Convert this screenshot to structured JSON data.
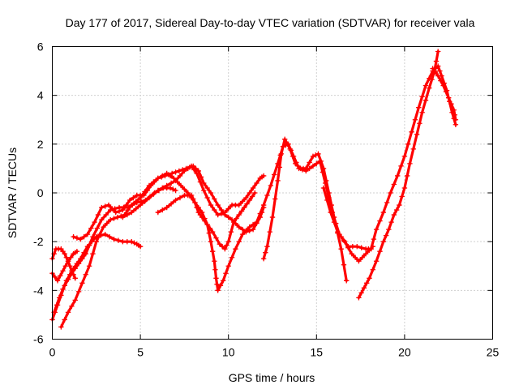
{
  "chart_data": {
    "type": "scatter",
    "title": "Day 177 of 2017, Sidereal Day-to-day VTEC variation (SDTVAR) for receiver vala",
    "xlabel": "GPS time / hours",
    "ylabel": "SDTVAR / TECUs",
    "xlim": [
      0,
      25
    ],
    "ylim": [
      -6,
      6
    ],
    "xticks": [
      0,
      5,
      10,
      15,
      20,
      25
    ],
    "yticks": [
      -6,
      -4,
      -2,
      0,
      2,
      4,
      6
    ],
    "grid": true,
    "marker": "+",
    "color": "#ff0000",
    "series": [
      {
        "name": "track-1",
        "points": [
          [
            0.0,
            -2.7
          ],
          [
            0.2,
            -2.3
          ],
          [
            0.5,
            -2.3
          ],
          [
            0.7,
            -2.5
          ],
          [
            0.9,
            -2.8
          ],
          [
            1.1,
            -3.2
          ],
          [
            1.3,
            -3.5
          ]
        ]
      },
      {
        "name": "track-2",
        "points": [
          [
            0.0,
            -3.3
          ],
          [
            0.3,
            -3.6
          ],
          [
            0.6,
            -3.2
          ],
          [
            0.9,
            -2.8
          ],
          [
            1.2,
            -2.5
          ],
          [
            1.4,
            -2.4
          ]
        ]
      },
      {
        "name": "track-3",
        "points": [
          [
            0.0,
            -5.2
          ],
          [
            0.3,
            -4.6
          ],
          [
            0.7,
            -3.8
          ],
          [
            1.1,
            -3.3
          ],
          [
            1.5,
            -2.9
          ],
          [
            1.9,
            -2.5
          ],
          [
            2.3,
            -1.8
          ],
          [
            2.8,
            -1.1
          ],
          [
            3.3,
            -0.7
          ],
          [
            3.8,
            -0.6
          ],
          [
            4.3,
            -0.6
          ],
          [
            4.8,
            -0.4
          ],
          [
            5.3,
            -0.3
          ],
          [
            5.8,
            0.0
          ],
          [
            6.3,
            0.2
          ],
          [
            6.7,
            0.2
          ],
          [
            7.0,
            0.1
          ]
        ]
      },
      {
        "name": "track-4",
        "points": [
          [
            0.1,
            -4.9
          ],
          [
            0.4,
            -4.3
          ],
          [
            0.8,
            -3.6
          ],
          [
            1.2,
            -3.1
          ],
          [
            1.6,
            -2.7
          ],
          [
            2.0,
            -2.2
          ],
          [
            2.5,
            -1.8
          ],
          [
            3.0,
            -1.7
          ],
          [
            3.5,
            -1.9
          ],
          [
            4.0,
            -2.0
          ],
          [
            4.5,
            -2.0
          ],
          [
            4.8,
            -2.1
          ],
          [
            5.0,
            -2.2
          ]
        ]
      },
      {
        "name": "track-5",
        "points": [
          [
            0.5,
            -5.5
          ],
          [
            0.9,
            -4.9
          ],
          [
            1.3,
            -4.4
          ],
          [
            1.7,
            -3.7
          ],
          [
            2.1,
            -3.0
          ],
          [
            2.5,
            -2.0
          ],
          [
            2.9,
            -1.4
          ],
          [
            3.3,
            -1.1
          ],
          [
            3.7,
            -1.0
          ],
          [
            4.1,
            -0.9
          ],
          [
            4.5,
            -0.5
          ],
          [
            5.0,
            -0.2
          ],
          [
            5.5,
            0.3
          ],
          [
            6.0,
            0.6
          ],
          [
            6.5,
            0.8
          ],
          [
            6.9,
            0.6
          ],
          [
            7.3,
            0.3
          ],
          [
            7.7,
            0.0
          ],
          [
            8.1,
            -0.4
          ],
          [
            8.5,
            -0.8
          ],
          [
            8.8,
            -1.3
          ],
          [
            9.0,
            -2.0
          ],
          [
            9.2,
            -2.8
          ],
          [
            9.3,
            -3.5
          ],
          [
            9.4,
            -4.0
          ],
          [
            9.7,
            -3.6
          ],
          [
            10.0,
            -3.0
          ],
          [
            10.4,
            -2.3
          ],
          [
            10.8,
            -1.7
          ],
          [
            11.2,
            -1.4
          ],
          [
            11.6,
            -1.2
          ],
          [
            12.0,
            -0.5
          ],
          [
            12.4,
            0.3
          ],
          [
            12.8,
            1.2
          ],
          [
            13.1,
            1.9
          ],
          [
            13.4,
            2.0
          ],
          [
            13.7,
            1.5
          ],
          [
            14.0,
            1.0
          ],
          [
            14.4,
            0.9
          ],
          [
            14.8,
            1.1
          ],
          [
            15.2,
            1.3
          ],
          [
            15.5,
            0.4
          ],
          [
            15.9,
            -0.8
          ],
          [
            16.3,
            -1.7
          ],
          [
            16.8,
            -2.2
          ],
          [
            17.3,
            -2.2
          ],
          [
            17.8,
            -2.3
          ],
          [
            18.1,
            -2.3
          ],
          [
            18.4,
            -1.5
          ],
          [
            18.8,
            -0.8
          ],
          [
            19.2,
            0.0
          ],
          [
            19.6,
            0.7
          ],
          [
            20.0,
            1.5
          ],
          [
            20.4,
            2.5
          ],
          [
            20.8,
            3.5
          ],
          [
            21.2,
            4.4
          ],
          [
            21.6,
            5.0
          ],
          [
            21.9,
            5.2
          ],
          [
            22.1,
            4.8
          ],
          [
            22.4,
            4.2
          ],
          [
            22.7,
            3.3
          ],
          [
            22.9,
            2.8
          ]
        ]
      },
      {
        "name": "track-6",
        "points": [
          [
            1.2,
            -1.8
          ],
          [
            1.6,
            -1.9
          ],
          [
            2.0,
            -1.7
          ],
          [
            2.4,
            -1.2
          ],
          [
            2.8,
            -0.6
          ],
          [
            3.2,
            -0.5
          ],
          [
            3.6,
            -0.8
          ],
          [
            4.0,
            -0.7
          ],
          [
            4.4,
            -0.3
          ],
          [
            4.8,
            -0.1
          ],
          [
            5.2,
            -0.1
          ],
          [
            5.6,
            0.3
          ],
          [
            6.0,
            0.6
          ],
          [
            6.4,
            0.7
          ],
          [
            6.8,
            0.8
          ],
          [
            7.2,
            0.9
          ],
          [
            7.6,
            1.0
          ],
          [
            8.0,
            1.1
          ],
          [
            8.3,
            0.9
          ],
          [
            8.6,
            0.4
          ],
          [
            9.0,
            0.0
          ],
          [
            9.4,
            -0.5
          ],
          [
            9.8,
            -0.9
          ],
          [
            10.2,
            -1.1
          ],
          [
            10.6,
            -1.4
          ],
          [
            11.0,
            -1.6
          ],
          [
            11.4,
            -1.5
          ],
          [
            11.8,
            -1.0
          ],
          [
            12.0,
            -0.6
          ]
        ]
      },
      {
        "name": "track-7",
        "points": [
          [
            4.0,
            -1.0
          ],
          [
            4.5,
            -0.8
          ],
          [
            5.0,
            -0.5
          ],
          [
            5.5,
            -0.2
          ],
          [
            6.0,
            0.1
          ],
          [
            6.5,
            0.3
          ],
          [
            7.0,
            0.5
          ],
          [
            7.5,
            0.9
          ],
          [
            7.9,
            1.1
          ],
          [
            8.2,
            0.8
          ],
          [
            8.6,
            0.1
          ],
          [
            9.0,
            -0.5
          ],
          [
            9.4,
            -0.9
          ],
          [
            9.8,
            -0.8
          ],
          [
            10.2,
            -0.5
          ],
          [
            10.6,
            -0.5
          ],
          [
            11.0,
            -0.2
          ],
          [
            11.4,
            0.2
          ],
          [
            11.8,
            0.6
          ],
          [
            12.0,
            0.7
          ]
        ]
      },
      {
        "name": "track-8",
        "points": [
          [
            6.0,
            -0.8
          ],
          [
            6.5,
            -0.6
          ],
          [
            7.0,
            -0.3
          ],
          [
            7.5,
            -0.1
          ],
          [
            7.9,
            -0.1
          ],
          [
            8.1,
            -0.4
          ],
          [
            8.3,
            -0.8
          ],
          [
            8.5,
            -1.0
          ],
          [
            8.8,
            -1.3
          ],
          [
            9.1,
            -1.6
          ],
          [
            9.5,
            -2.1
          ],
          [
            9.8,
            -2.3
          ],
          [
            10.0,
            -2.0
          ],
          [
            10.3,
            -1.2
          ],
          [
            10.6,
            -0.9
          ],
          [
            10.9,
            -0.6
          ],
          [
            11.2,
            -0.3
          ],
          [
            11.5,
            0.0
          ]
        ]
      },
      {
        "name": "track-9",
        "points": [
          [
            12.0,
            -2.7
          ],
          [
            12.2,
            -2.2
          ],
          [
            12.5,
            -1.0
          ],
          [
            12.8,
            0.5
          ],
          [
            13.0,
            1.6
          ],
          [
            13.2,
            2.2
          ],
          [
            13.5,
            1.8
          ],
          [
            13.8,
            1.2
          ],
          [
            14.1,
            1.0
          ],
          [
            14.4,
            1.0
          ],
          [
            14.8,
            1.5
          ],
          [
            15.1,
            1.6
          ],
          [
            15.4,
            1.0
          ],
          [
            15.7,
            0.0
          ],
          [
            16.0,
            -1.0
          ],
          [
            16.4,
            -2.3
          ],
          [
            16.7,
            -3.6
          ]
        ]
      },
      {
        "name": "track-10",
        "points": [
          [
            15.4,
            0.2
          ],
          [
            15.8,
            -0.8
          ],
          [
            16.2,
            -1.6
          ],
          [
            16.6,
            -2.0
          ],
          [
            17.0,
            -2.5
          ],
          [
            17.4,
            -2.8
          ],
          [
            17.8,
            -2.5
          ],
          [
            18.2,
            -2.2
          ]
        ]
      },
      {
        "name": "track-11",
        "points": [
          [
            17.4,
            -4.3
          ],
          [
            17.7,
            -3.9
          ],
          [
            18.0,
            -3.5
          ],
          [
            18.4,
            -2.8
          ],
          [
            18.8,
            -2.0
          ],
          [
            19.1,
            -1.5
          ],
          [
            19.4,
            -0.9
          ],
          [
            19.7,
            -0.5
          ],
          [
            20.0,
            0.2
          ],
          [
            20.3,
            1.2
          ],
          [
            20.7,
            2.4
          ],
          [
            21.0,
            3.3
          ],
          [
            21.4,
            4.3
          ],
          [
            21.7,
            5.0
          ],
          [
            21.9,
            5.8
          ]
        ]
      },
      {
        "name": "track-12",
        "points": [
          [
            21.6,
            5.1
          ],
          [
            21.9,
            4.8
          ],
          [
            22.2,
            4.4
          ],
          [
            22.5,
            3.9
          ],
          [
            22.8,
            3.4
          ],
          [
            22.9,
            3.0
          ]
        ]
      }
    ]
  }
}
